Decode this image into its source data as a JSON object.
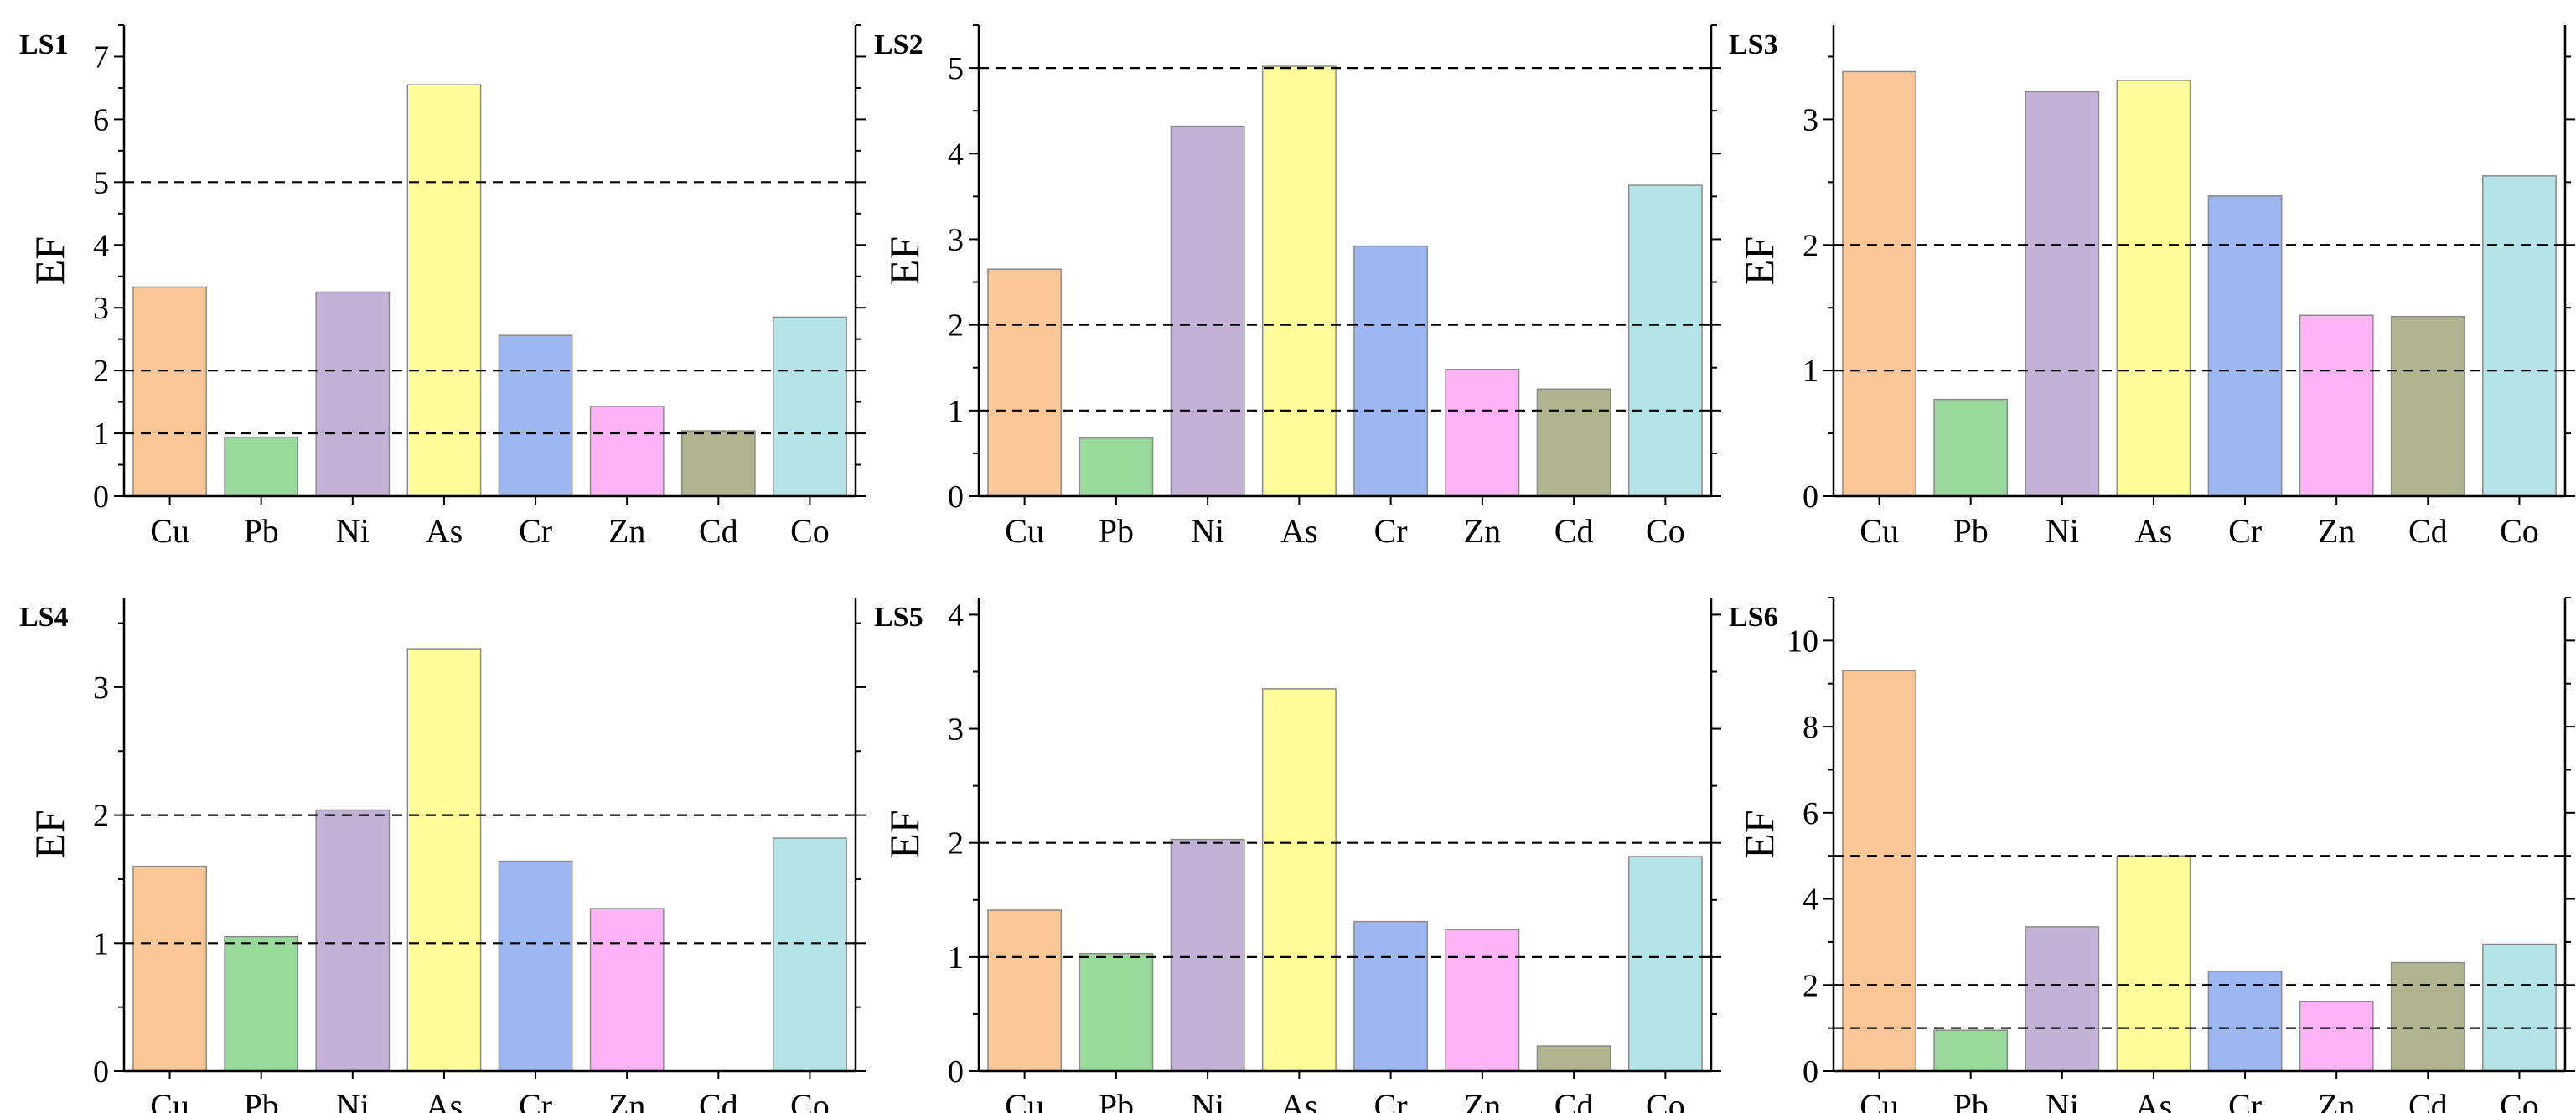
{
  "figure": {
    "categories": [
      "Cu",
      "Pb",
      "Ni",
      "As",
      "Cr",
      "Zn",
      "Cd",
      "Co"
    ],
    "colors": [
      "#f9c797",
      "#99d99c",
      "#c3b1d6",
      "#fefd99",
      "#9db8f1",
      "#fcb4f7",
      "#b1b28e",
      "#b4e4e8"
    ],
    "bar_edge_color": "#8a8a8a",
    "dash_color": "#000000"
  },
  "chart_data": [
    {
      "type": "bar",
      "title": "LS1",
      "xlabel": "",
      "ylabel": "EF",
      "categories": [
        "Cu",
        "Pb",
        "Ni",
        "As",
        "Cr",
        "Zn",
        "Cd",
        "Co"
      ],
      "values": [
        3.33,
        0.94,
        3.25,
        6.55,
        2.56,
        1.43,
        1.04,
        2.85
      ],
      "ylim": [
        0,
        7.5
      ],
      "yticks": [
        0,
        1,
        2,
        3,
        4,
        5,
        6,
        7
      ],
      "threshold_lines": [
        1,
        2,
        5
      ]
    },
    {
      "type": "bar",
      "title": "LS2",
      "xlabel": "",
      "ylabel": "EF",
      "categories": [
        "Cu",
        "Pb",
        "Ni",
        "As",
        "Cr",
        "Zn",
        "Cd",
        "Co"
      ],
      "values": [
        2.65,
        0.68,
        4.32,
        5.02,
        2.92,
        1.48,
        1.25,
        3.63
      ],
      "ylim": [
        0,
        5.5
      ],
      "yticks": [
        0,
        1,
        2,
        3,
        4,
        5
      ],
      "threshold_lines": [
        1,
        2,
        5
      ]
    },
    {
      "type": "bar",
      "title": "LS3",
      "xlabel": "",
      "ylabel": "EF",
      "categories": [
        "Cu",
        "Pb",
        "Ni",
        "As",
        "Cr",
        "Zn",
        "Cd",
        "Co"
      ],
      "values": [
        3.38,
        0.77,
        3.22,
        3.31,
        2.39,
        1.44,
        1.43,
        2.55
      ],
      "ylim": [
        0,
        3.75
      ],
      "yticks": [
        0,
        1,
        2,
        3
      ],
      "threshold_lines": [
        1,
        2
      ]
    },
    {
      "type": "bar",
      "title": "LS4",
      "xlabel": "",
      "ylabel": "EF",
      "categories": [
        "Cu",
        "Pb",
        "Ni",
        "As",
        "Cr",
        "Zn",
        "Cd",
        "Co"
      ],
      "values": [
        1.6,
        1.05,
        2.04,
        3.3,
        1.64,
        1.27,
        0,
        1.82
      ],
      "ylim": [
        0,
        3.7
      ],
      "yticks": [
        0,
        1,
        2,
        3
      ],
      "threshold_lines": [
        1,
        2
      ]
    },
    {
      "type": "bar",
      "title": "LS5",
      "xlabel": "",
      "ylabel": "EF",
      "categories": [
        "Cu",
        "Pb",
        "Ni",
        "As",
        "Cr",
        "Zn",
        "Cd",
        "Co"
      ],
      "values": [
        1.41,
        1.03,
        2.03,
        3.35,
        1.31,
        1.24,
        0.22,
        1.88
      ],
      "ylim": [
        0,
        4.15
      ],
      "yticks": [
        0,
        1,
        2,
        3,
        4
      ],
      "threshold_lines": [
        1,
        2
      ]
    },
    {
      "type": "bar",
      "title": "LS6",
      "xlabel": "",
      "ylabel": "EF",
      "categories": [
        "Cu",
        "Pb",
        "Ni",
        "As",
        "Cr",
        "Zn",
        "Cd",
        "Co"
      ],
      "values": [
        9.3,
        0.95,
        3.35,
        5.0,
        2.32,
        1.62,
        2.52,
        2.95
      ],
      "ylim": [
        0,
        11
      ],
      "yticks": [
        0,
        2,
        4,
        6,
        8,
        10
      ],
      "threshold_lines": [
        1,
        2,
        5
      ]
    }
  ]
}
